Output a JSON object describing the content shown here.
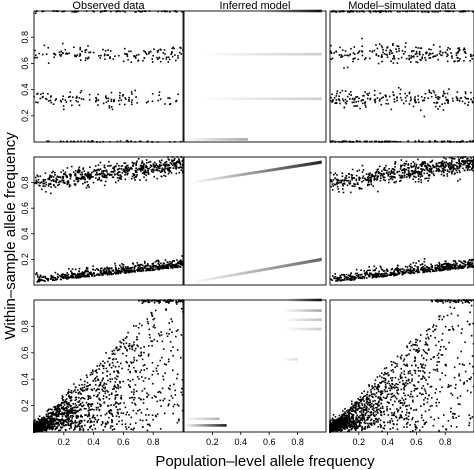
{
  "figure": {
    "column_titles": [
      "Observed data",
      "Inferred model",
      "Model–simulated data"
    ],
    "xlabel": "Population–level allele frequency",
    "ylabel": "Within–sample allele frequency",
    "x_ticks": [
      "0.2",
      "0.4",
      "0.6",
      "0.8"
    ],
    "y_ticks": [
      "0.2",
      "0.4",
      "0.6",
      "0.8"
    ]
  },
  "chart_data": {
    "type": "scatter",
    "layout": "3x3 grid of panels; columns share x axis (0 to 1), rows share y axis (0 to 1)",
    "x_range": [
      0,
      1
    ],
    "y_range": [
      0,
      1
    ],
    "grid": false,
    "legend": "none",
    "point_color": "#000000",
    "rows": [
      {
        "row": 1,
        "observed_clusters_y": [
          1.0,
          0.67,
          0.33,
          0.0
        ],
        "model_bands": [
          {
            "y": 1.0,
            "x": [
              0.55,
              0.97
            ],
            "intensity": 0.9
          },
          {
            "y": 0.67,
            "x": [
              0.1,
              0.97
            ],
            "intensity": 0.2
          },
          {
            "y": 0.33,
            "x": [
              0.1,
              0.97
            ],
            "intensity": 0.2
          },
          {
            "y": 0.02,
            "x": [
              0.0,
              0.45
            ],
            "intensity": 0.35
          }
        ]
      },
      {
        "row": 2,
        "observed_trend_upper": {
          "x": [
            0.0,
            1.0
          ],
          "y": [
            0.8,
            0.95
          ]
        },
        "observed_trend_lower": {
          "x": [
            0.0,
            1.0
          ],
          "y": [
            0.02,
            0.15
          ]
        },
        "model_bands": [
          {
            "y_start": 0.8,
            "y_end": 0.96,
            "x": [
              0.05,
              0.97
            ],
            "intensity": 0.85
          },
          {
            "y_start": 0.02,
            "y_end": 0.2,
            "x": [
              0.05,
              0.97
            ],
            "intensity": 0.6
          }
        ]
      },
      {
        "row": 3,
        "observed_pattern": "broad scatter increasing with x; dense near origin and along y = 1 at high x",
        "model_bands": [
          {
            "y": 1.0,
            "x": [
              0.72,
              0.97
            ],
            "intensity": 0.9
          },
          {
            "y": 0.92,
            "x": [
              0.7,
              0.97
            ],
            "intensity": 0.35
          },
          {
            "y": 0.85,
            "x": [
              0.7,
              0.97
            ],
            "intensity": 0.25
          },
          {
            "y": 0.78,
            "x": [
              0.7,
              0.97
            ],
            "intensity": 0.2
          },
          {
            "y": 0.55,
            "x": [
              0.7,
              0.8
            ],
            "intensity": 0.15
          },
          {
            "y": 0.05,
            "x": [
              0.0,
              0.3
            ],
            "intensity": 0.9
          },
          {
            "y": 0.1,
            "x": [
              0.0,
              0.25
            ],
            "intensity": 0.3
          }
        ]
      }
    ]
  }
}
